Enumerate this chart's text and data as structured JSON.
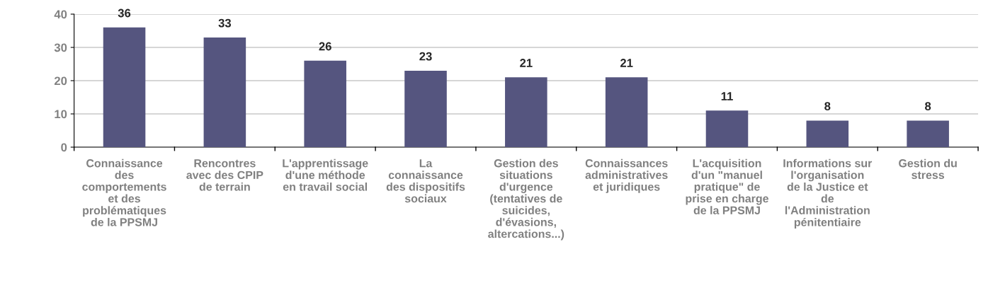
{
  "chart_data": {
    "type": "bar",
    "categories": [
      "Connaissance\ndes\ncomportements\net des\nproblématiques\nde la PPSMJ",
      "Rencontres\navec des CPIP\nde terrain",
      "L'apprentissage\nd'une méthode\nen travail social",
      "La\nconnaissance\ndes dispositifs\nsociaux",
      "Gestion des\nsituations\nd'urgence\n(tentatives de\nsuicides,\nd'évasions,\naltercations...)",
      "Connaissances\nadministratives\net juridiques",
      "L'acquisition\nd'un \"manuel\npratique\" de\nprise en charge\nde la PPSMJ",
      "Informations sur\nl'organisation\nde la Justice et\nde\nl'Administration\npénitentiaire",
      "Gestion du\nstress"
    ],
    "values": [
      36,
      33,
      26,
      23,
      21,
      21,
      11,
      8,
      8
    ],
    "color": "#55557f",
    "ylim": [
      0,
      40
    ],
    "yticks": [
      0,
      10,
      20,
      30,
      40
    ],
    "grid": "y",
    "data_labels": true
  }
}
